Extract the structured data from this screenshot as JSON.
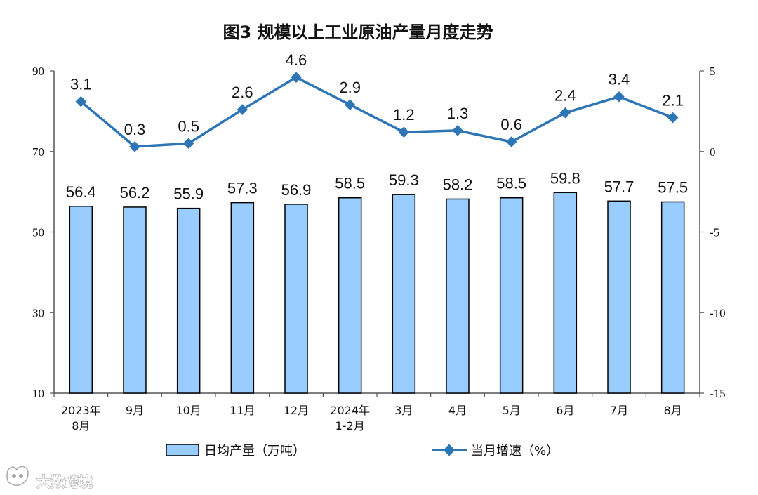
{
  "chart_data": {
    "type": "bar+line",
    "title": "图3  规模以上工业原油产量月度走势",
    "categories": [
      [
        "2023年",
        "8月"
      ],
      [
        "9月"
      ],
      [
        "10月"
      ],
      [
        "11月"
      ],
      [
        "12月"
      ],
      [
        "2024年",
        "1-2月"
      ],
      [
        "3月"
      ],
      [
        "4月"
      ],
      [
        "5月"
      ],
      [
        "6月"
      ],
      [
        "7月"
      ],
      [
        "8月"
      ]
    ],
    "series": [
      {
        "name": "日均产量（万吨）",
        "kind": "bar",
        "axis": "left",
        "color": "#99ccff",
        "values": [
          56.4,
          56.2,
          55.9,
          57.3,
          56.9,
          58.5,
          59.3,
          58.2,
          58.5,
          59.8,
          57.7,
          57.5
        ],
        "labels": [
          "56.4",
          "56.2",
          "55.9",
          "57.3",
          "56.9",
          "58.5",
          "59.3",
          "58.2",
          "58.5",
          "59.8",
          "57.7",
          "57.5"
        ]
      },
      {
        "name": "当月增速（%）",
        "kind": "line",
        "axis": "right",
        "color": "#2e75b6",
        "values": [
          3.1,
          0.3,
          0.5,
          2.6,
          4.6,
          2.9,
          1.2,
          1.3,
          0.6,
          2.4,
          3.4,
          2.1
        ],
        "labels": [
          "3.1",
          "0.3",
          "0.5",
          "2.6",
          "4.6",
          "2.9",
          "1.2",
          "1.3",
          "0.6",
          "2.4",
          "3.4",
          "2.1"
        ]
      }
    ],
    "y_left": {
      "range": [
        10,
        90
      ],
      "ticks": [
        10,
        30,
        50,
        70,
        90
      ],
      "tick_labels": [
        "10",
        "30",
        "50",
        "70",
        "90"
      ]
    },
    "y_right": {
      "range": [
        -15,
        5
      ],
      "ticks": [
        -15,
        -10,
        -5,
        0,
        5
      ],
      "tick_labels": [
        "-15",
        "-10",
        "-5",
        "0",
        "5"
      ]
    },
    "legend": {
      "placement": "bottom"
    },
    "grid": false
  },
  "watermark": {
    "text": "大数跨境"
  }
}
